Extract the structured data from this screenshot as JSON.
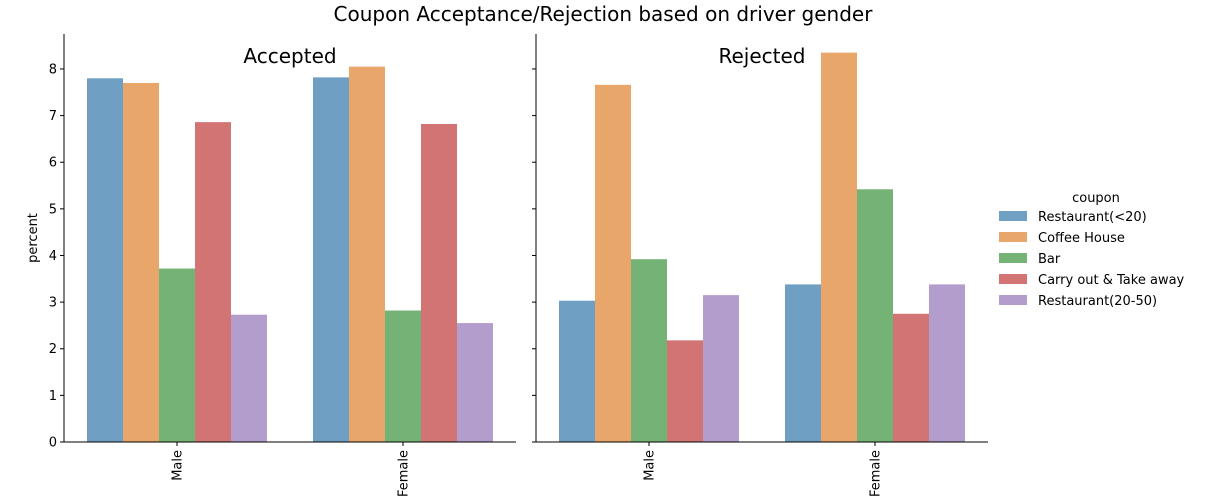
{
  "chart_data": {
    "type": "bar",
    "title": "Coupon Acceptance/Rejection based on driver gender",
    "ylabel": "percent",
    "xlabel": "",
    "ylim": [
      0,
      8.75
    ],
    "yticks": [
      0,
      1,
      2,
      3,
      4,
      5,
      6,
      7,
      8
    ],
    "categories": [
      "Male",
      "Female"
    ],
    "legend": {
      "title": "coupon",
      "placement": "right"
    },
    "series": [
      {
        "name": "Restaurant(<20)",
        "color": "#6f9fc2"
      },
      {
        "name": "Coffee House",
        "color": "#e8a66b"
      },
      {
        "name": "Bar",
        "color": "#74b375"
      },
      {
        "name": "Carry out & Take away",
        "color": "#d27474"
      },
      {
        "name": "Restaurant(20-50)",
        "color": "#b39dcc"
      }
    ],
    "panels": [
      {
        "title": "Accepted",
        "values": [
          [
            7.8,
            7.82
          ],
          [
            7.7,
            8.05
          ],
          [
            3.72,
            2.82
          ],
          [
            6.86,
            6.82
          ],
          [
            2.73,
            2.55
          ]
        ]
      },
      {
        "title": "Rejected",
        "values": [
          [
            3.03,
            3.38
          ],
          [
            7.66,
            8.35
          ],
          [
            3.92,
            5.42
          ],
          [
            2.18,
            2.75
          ],
          [
            3.15,
            3.38
          ]
        ]
      }
    ]
  }
}
